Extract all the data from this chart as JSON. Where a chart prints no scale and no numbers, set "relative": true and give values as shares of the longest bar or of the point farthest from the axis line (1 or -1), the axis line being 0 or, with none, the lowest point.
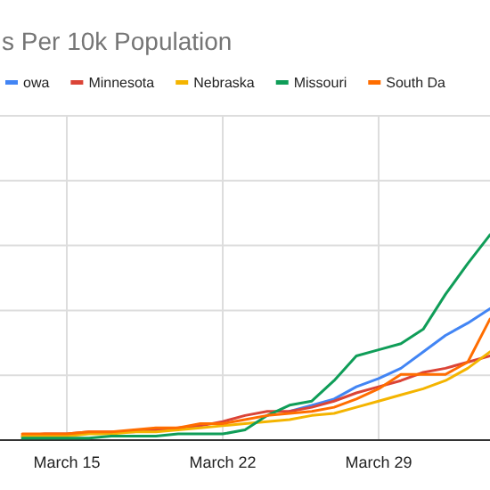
{
  "chart_data": {
    "type": "line",
    "title": "s Per 10k Population",
    "relative": true,
    "grid": true,
    "legend": "top",
    "line_style": "solid",
    "marker": "none",
    "x": [
      "--03-13",
      "--03-14",
      "--03-15",
      "--03-16",
      "--03-17",
      "--03-18",
      "--03-19",
      "--03-20",
      "--03-21",
      "--03-22",
      "--03-23",
      "--03-24",
      "--03-25",
      "--03-26",
      "--03-27",
      "--03-28",
      "--03-29",
      "--03-30",
      "--03-31",
      "--04-01",
      "--04-02",
      "--04-03"
    ],
    "xlim": [
      "--03-12",
      "--04-03"
    ],
    "xticks": [
      {
        "value": "--03-15",
        "label": "March 15"
      },
      {
        "value": "--03-22",
        "label": "March 22"
      },
      {
        "value": "--03-29",
        "label": "March 29"
      }
    ],
    "series": [
      {
        "name": "owa",
        "color": "#4285f4",
        "values": [
          null,
          null,
          null,
          null,
          null,
          null,
          null,
          null,
          null,
          null,
          null,
          null,
          0.14,
          0.17,
          0.2,
          0.26,
          0.3,
          0.35,
          0.43,
          0.51,
          0.57,
          0.64
        ]
      },
      {
        "name": "Minnesota",
        "color": "#db4437",
        "values": [
          0.02,
          0.03,
          0.03,
          0.04,
          0.04,
          0.04,
          0.05,
          0.06,
          0.07,
          0.09,
          0.12,
          0.14,
          0.14,
          0.16,
          0.19,
          0.23,
          0.26,
          0.29,
          0.33,
          0.35,
          0.38,
          0.41
        ]
      },
      {
        "name": "Nebraska",
        "color": "#f4b400",
        "values": [
          0.02,
          0.02,
          0.02,
          0.03,
          0.03,
          0.04,
          0.04,
          0.05,
          0.06,
          0.07,
          0.08,
          0.09,
          0.1,
          0.12,
          0.13,
          0.16,
          0.19,
          0.22,
          0.25,
          0.29,
          0.35,
          0.43
        ]
      },
      {
        "name": "Missouri",
        "color": "#0f9d58",
        "values": [
          0.01,
          0.01,
          0.01,
          0.01,
          0.02,
          0.02,
          0.02,
          0.03,
          0.03,
          0.03,
          0.05,
          0.12,
          0.17,
          0.19,
          0.29,
          0.41,
          0.44,
          0.47,
          0.54,
          0.71,
          0.86,
          1
        ]
      },
      {
        "name": "South Da",
        "color": "#ff6d00",
        "values": [
          0.03,
          0.03,
          0.03,
          0.04,
          0.04,
          0.05,
          0.06,
          0.06,
          0.08,
          0.08,
          0.1,
          0.12,
          0.13,
          0.14,
          0.16,
          0.2,
          0.25,
          0.32,
          0.32,
          0.32,
          0.38,
          0.59
        ]
      }
    ]
  }
}
